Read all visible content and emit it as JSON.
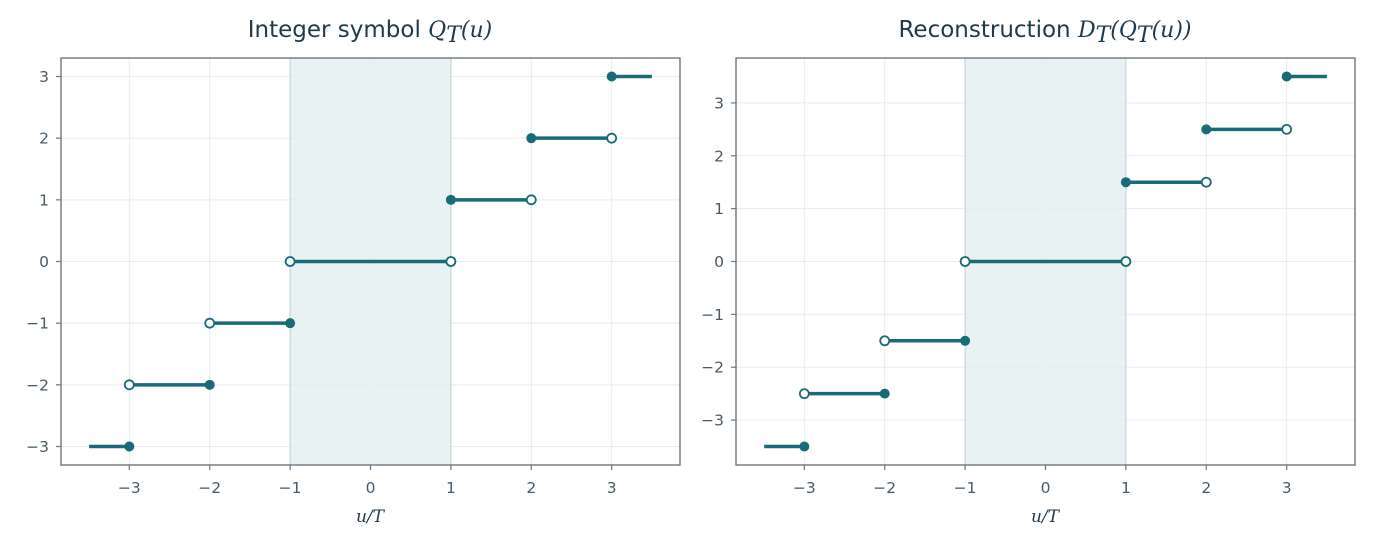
{
  "colors": {
    "accent": "#1a6b78",
    "band": "#d7e8ea",
    "text": "#1f3a4a",
    "frame": "#6b7780"
  },
  "chart_data": [
    {
      "type": "line",
      "title_text": "Integer symbol ",
      "title_math": "Q_T(u)",
      "title_math_display": [
        "Q",
        "T",
        "(u)"
      ],
      "xlabel": "u/T",
      "ylabel": "",
      "xlim": [
        -3.85,
        3.85
      ],
      "ylim": [
        -3.3,
        3.3
      ],
      "xticks": [
        -3,
        -2,
        -1,
        0,
        1,
        2,
        3
      ],
      "yticks": [
        -3,
        -2,
        -1,
        0,
        1,
        2,
        3
      ],
      "xtick_labels": [
        "−3",
        "−2",
        "−1",
        "0",
        "1",
        "2",
        "3"
      ],
      "ytick_labels": [
        "−3",
        "−2",
        "−1",
        "0",
        "1",
        "2",
        "3"
      ],
      "grid": true,
      "shaded_region": [
        -1,
        1
      ],
      "segments": [
        {
          "x0": -3.5,
          "x1": -3,
          "y": -3,
          "left": "none",
          "right": "closed"
        },
        {
          "x0": -3,
          "x1": -2,
          "y": -2,
          "left": "open",
          "right": "closed"
        },
        {
          "x0": -2,
          "x1": -1,
          "y": -1,
          "left": "open",
          "right": "closed"
        },
        {
          "x0": -1,
          "x1": 1,
          "y": 0,
          "left": "open",
          "right": "open"
        },
        {
          "x0": 1,
          "x1": 2,
          "y": 1,
          "left": "closed",
          "right": "open"
        },
        {
          "x0": 2,
          "x1": 3,
          "y": 2,
          "left": "closed",
          "right": "open"
        },
        {
          "x0": 3,
          "x1": 3.5,
          "y": 3,
          "left": "closed",
          "right": "none"
        }
      ]
    },
    {
      "type": "line",
      "title_text": "Reconstruction ",
      "title_math": "D_T(Q_T(u))",
      "title_math_display": [
        "D",
        "T",
        "(Q",
        "T",
        "(u))"
      ],
      "xlabel": "u/T",
      "ylabel": "",
      "xlim": [
        -3.85,
        3.85
      ],
      "ylim": [
        -3.85,
        3.85
      ],
      "xticks": [
        -3,
        -2,
        -1,
        0,
        1,
        2,
        3
      ],
      "yticks": [
        -3,
        -2,
        -1,
        0,
        1,
        2,
        3
      ],
      "xtick_labels": [
        "−3",
        "−2",
        "−1",
        "0",
        "1",
        "2",
        "3"
      ],
      "ytick_labels": [
        "−3",
        "−2",
        "−1",
        "0",
        "1",
        "2",
        "3"
      ],
      "grid": true,
      "shaded_region": [
        -1,
        1
      ],
      "segments": [
        {
          "x0": -3.5,
          "x1": -3,
          "y": -3.5,
          "left": "none",
          "right": "closed"
        },
        {
          "x0": -3,
          "x1": -2,
          "y": -2.5,
          "left": "open",
          "right": "closed"
        },
        {
          "x0": -2,
          "x1": -1,
          "y": -1.5,
          "left": "open",
          "right": "closed"
        },
        {
          "x0": -1,
          "x1": 1,
          "y": 0,
          "left": "open",
          "right": "open"
        },
        {
          "x0": 1,
          "x1": 2,
          "y": 1.5,
          "left": "closed",
          "right": "open"
        },
        {
          "x0": 2,
          "x1": 3,
          "y": 2.5,
          "left": "closed",
          "right": "open"
        },
        {
          "x0": 3,
          "x1": 3.5,
          "y": 3.5,
          "left": "closed",
          "right": "none"
        }
      ]
    }
  ]
}
